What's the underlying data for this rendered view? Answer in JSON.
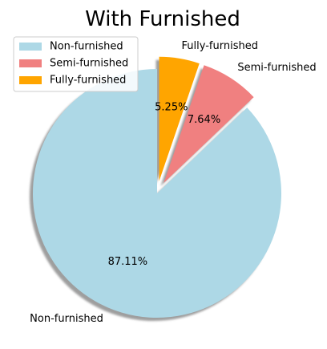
{
  "chart_data": {
    "type": "pie",
    "title": "With Furnished",
    "categories": [
      "Non-furnished",
      "Semi-furnished",
      "Fully-furnished"
    ],
    "values": [
      87.11,
      7.64,
      5.25
    ],
    "value_labels": [
      "87.11%",
      "7.64%",
      "5.25%"
    ],
    "colors": [
      "#add8e6",
      "#f08080",
      "#ffa500"
    ],
    "exploded": [
      false,
      true,
      true
    ],
    "shadow": true,
    "start_angle_deg": 90,
    "legend": {
      "placement": "upper-left",
      "entries": [
        "Non-furnished",
        "Semi-furnished",
        "Fully-furnished"
      ]
    }
  }
}
